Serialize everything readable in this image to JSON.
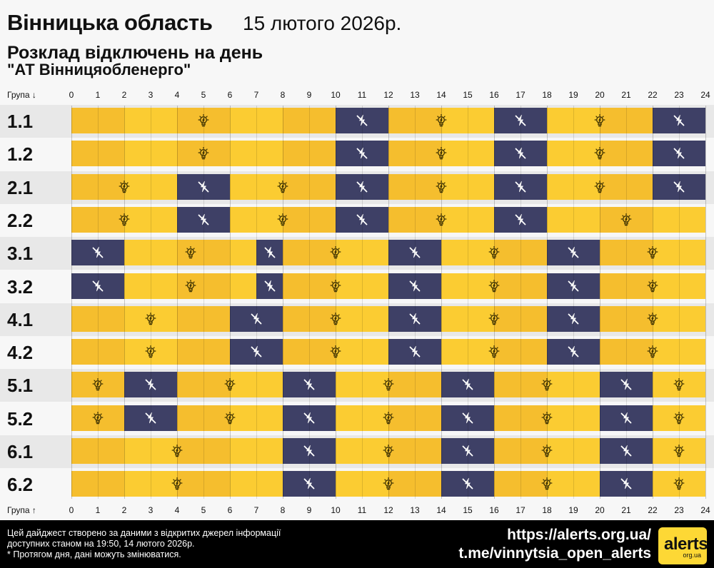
{
  "colors": {
    "on_light": "#fbcc32",
    "on_dark": "#f5be2e",
    "off": "#3e4066",
    "band_even": "#e8e8e8",
    "band_odd": "#f7f7f7",
    "icon_on": "#3a2f00",
    "icon_off": "#ffffff"
  },
  "header": {
    "region": "Вінницька область",
    "date": "15 лютого 2026р.",
    "subtitle": "Розклад відключень на день",
    "company": "\"АТ Вінницяобленерго\""
  },
  "axis": {
    "top_label": "Група ↓",
    "bottom_label": "Група ↑",
    "hours": [
      "0",
      "1",
      "2",
      "3",
      "4",
      "5",
      "6",
      "7",
      "8",
      "9",
      "10",
      "11",
      "12",
      "13",
      "14",
      "15",
      "16",
      "17",
      "18",
      "19",
      "20",
      "21",
      "22",
      "23",
      "24"
    ]
  },
  "groups": [
    {
      "name": "1.1",
      "segments": [
        {
          "start": 0,
          "end": 10,
          "state": "on",
          "icon": 5
        },
        {
          "start": 10,
          "end": 12,
          "state": "off"
        },
        {
          "start": 12,
          "end": 16,
          "state": "on",
          "icon": 14
        },
        {
          "start": 16,
          "end": 18,
          "state": "off"
        },
        {
          "start": 18,
          "end": 22,
          "state": "on",
          "icon": 20
        },
        {
          "start": 22,
          "end": 24,
          "state": "off"
        }
      ]
    },
    {
      "name": "1.2",
      "segments": [
        {
          "start": 0,
          "end": 10,
          "state": "on",
          "icon": 5
        },
        {
          "start": 10,
          "end": 12,
          "state": "off"
        },
        {
          "start": 12,
          "end": 16,
          "state": "on",
          "icon": 14
        },
        {
          "start": 16,
          "end": 18,
          "state": "off"
        },
        {
          "start": 18,
          "end": 22,
          "state": "on",
          "icon": 20
        },
        {
          "start": 22,
          "end": 24,
          "state": "off"
        }
      ]
    },
    {
      "name": "2.1",
      "segments": [
        {
          "start": 0,
          "end": 4,
          "state": "on",
          "icon": 2
        },
        {
          "start": 4,
          "end": 6,
          "state": "off"
        },
        {
          "start": 6,
          "end": 10,
          "state": "on",
          "icon": 8
        },
        {
          "start": 10,
          "end": 12,
          "state": "off"
        },
        {
          "start": 12,
          "end": 16,
          "state": "on",
          "icon": 14
        },
        {
          "start": 16,
          "end": 18,
          "state": "off"
        },
        {
          "start": 18,
          "end": 22,
          "state": "on",
          "icon": 20
        },
        {
          "start": 22,
          "end": 24,
          "state": "off"
        }
      ]
    },
    {
      "name": "2.2",
      "segments": [
        {
          "start": 0,
          "end": 4,
          "state": "on",
          "icon": 2
        },
        {
          "start": 4,
          "end": 6,
          "state": "off"
        },
        {
          "start": 6,
          "end": 10,
          "state": "on",
          "icon": 8
        },
        {
          "start": 10,
          "end": 12,
          "state": "off"
        },
        {
          "start": 12,
          "end": 16,
          "state": "on",
          "icon": 14
        },
        {
          "start": 16,
          "end": 18,
          "state": "off"
        },
        {
          "start": 18,
          "end": 24,
          "state": "on",
          "icon": 21
        }
      ]
    },
    {
      "name": "3.1",
      "segments": [
        {
          "start": 0,
          "end": 2,
          "state": "off"
        },
        {
          "start": 2,
          "end": 7,
          "state": "on",
          "icon": 4.5
        },
        {
          "start": 7,
          "end": 8,
          "state": "off"
        },
        {
          "start": 8,
          "end": 12,
          "state": "on",
          "icon": 10
        },
        {
          "start": 12,
          "end": 14,
          "state": "off"
        },
        {
          "start": 14,
          "end": 18,
          "state": "on",
          "icon": 16
        },
        {
          "start": 18,
          "end": 20,
          "state": "off"
        },
        {
          "start": 20,
          "end": 24,
          "state": "on",
          "icon": 22
        }
      ]
    },
    {
      "name": "3.2",
      "segments": [
        {
          "start": 0,
          "end": 2,
          "state": "off"
        },
        {
          "start": 2,
          "end": 7,
          "state": "on",
          "icon": 4.5
        },
        {
          "start": 7,
          "end": 8,
          "state": "off"
        },
        {
          "start": 8,
          "end": 12,
          "state": "on",
          "icon": 10
        },
        {
          "start": 12,
          "end": 14,
          "state": "off"
        },
        {
          "start": 14,
          "end": 18,
          "state": "on",
          "icon": 16
        },
        {
          "start": 18,
          "end": 20,
          "state": "off"
        },
        {
          "start": 20,
          "end": 24,
          "state": "on",
          "icon": 22
        }
      ]
    },
    {
      "name": "4.1",
      "segments": [
        {
          "start": 0,
          "end": 6,
          "state": "on",
          "icon": 3
        },
        {
          "start": 6,
          "end": 8,
          "state": "off"
        },
        {
          "start": 8,
          "end": 12,
          "state": "on",
          "icon": 10
        },
        {
          "start": 12,
          "end": 14,
          "state": "off"
        },
        {
          "start": 14,
          "end": 18,
          "state": "on",
          "icon": 16
        },
        {
          "start": 18,
          "end": 20,
          "state": "off"
        },
        {
          "start": 20,
          "end": 24,
          "state": "on",
          "icon": 22
        }
      ]
    },
    {
      "name": "4.2",
      "segments": [
        {
          "start": 0,
          "end": 6,
          "state": "on",
          "icon": 3
        },
        {
          "start": 6,
          "end": 8,
          "state": "off"
        },
        {
          "start": 8,
          "end": 12,
          "state": "on",
          "icon": 10
        },
        {
          "start": 12,
          "end": 14,
          "state": "off"
        },
        {
          "start": 14,
          "end": 18,
          "state": "on",
          "icon": 16
        },
        {
          "start": 18,
          "end": 20,
          "state": "off"
        },
        {
          "start": 20,
          "end": 24,
          "state": "on",
          "icon": 22
        }
      ]
    },
    {
      "name": "5.1",
      "segments": [
        {
          "start": 0,
          "end": 2,
          "state": "on",
          "icon": 1
        },
        {
          "start": 2,
          "end": 4,
          "state": "off"
        },
        {
          "start": 4,
          "end": 8,
          "state": "on",
          "icon": 6
        },
        {
          "start": 8,
          "end": 10,
          "state": "off"
        },
        {
          "start": 10,
          "end": 14,
          "state": "on",
          "icon": 12
        },
        {
          "start": 14,
          "end": 16,
          "state": "off"
        },
        {
          "start": 16,
          "end": 20,
          "state": "on",
          "icon": 18
        },
        {
          "start": 20,
          "end": 22,
          "state": "off"
        },
        {
          "start": 22,
          "end": 24,
          "state": "on",
          "icon": 23
        }
      ]
    },
    {
      "name": "5.2",
      "segments": [
        {
          "start": 0,
          "end": 2,
          "state": "on",
          "icon": 1
        },
        {
          "start": 2,
          "end": 4,
          "state": "off"
        },
        {
          "start": 4,
          "end": 8,
          "state": "on",
          "icon": 6
        },
        {
          "start": 8,
          "end": 10,
          "state": "off"
        },
        {
          "start": 10,
          "end": 14,
          "state": "on",
          "icon": 12
        },
        {
          "start": 14,
          "end": 16,
          "state": "off"
        },
        {
          "start": 16,
          "end": 20,
          "state": "on",
          "icon": 18
        },
        {
          "start": 20,
          "end": 22,
          "state": "off"
        },
        {
          "start": 22,
          "end": 24,
          "state": "on",
          "icon": 23
        }
      ]
    },
    {
      "name": "6.1",
      "segments": [
        {
          "start": 0,
          "end": 8,
          "state": "on",
          "icon": 4
        },
        {
          "start": 8,
          "end": 10,
          "state": "off"
        },
        {
          "start": 10,
          "end": 14,
          "state": "on",
          "icon": 12
        },
        {
          "start": 14,
          "end": 16,
          "state": "off"
        },
        {
          "start": 16,
          "end": 20,
          "state": "on",
          "icon": 18
        },
        {
          "start": 20,
          "end": 22,
          "state": "off"
        },
        {
          "start": 22,
          "end": 24,
          "state": "on",
          "icon": 23
        }
      ]
    },
    {
      "name": "6.2",
      "segments": [
        {
          "start": 0,
          "end": 8,
          "state": "on",
          "icon": 4
        },
        {
          "start": 8,
          "end": 10,
          "state": "off"
        },
        {
          "start": 10,
          "end": 14,
          "state": "on",
          "icon": 12
        },
        {
          "start": 14,
          "end": 16,
          "state": "off"
        },
        {
          "start": 16,
          "end": 20,
          "state": "on",
          "icon": 18
        },
        {
          "start": 20,
          "end": 22,
          "state": "off"
        },
        {
          "start": 22,
          "end": 24,
          "state": "on",
          "icon": 23
        }
      ]
    }
  ],
  "icons": {
    "on": "light-bulb-icon",
    "off": "power-off-icon"
  },
  "footer": {
    "note_line1": "Цей дайджест створено за даними з відкритих джерел інформації",
    "note_line2": "доступних станом на 19:50, 14 лютого 2026р.",
    "note_line3": "* Протягом дня, дані можуть змінюватися.",
    "link_site": "https://alerts.org.ua/",
    "link_telegram": "t.me/vinnytsia_open_alerts",
    "logo_text": "alerts",
    "logo_domain": "org.ua"
  }
}
